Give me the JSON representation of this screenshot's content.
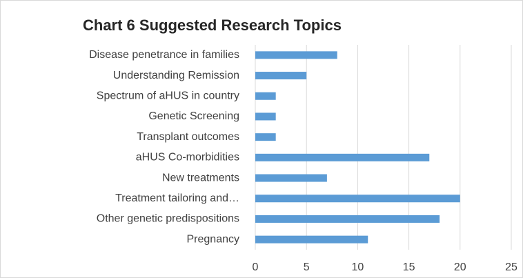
{
  "chart_data": {
    "type": "bar",
    "orientation": "horizontal",
    "title": "Chart 6 Suggested Research Topics",
    "categories": [
      "Disease penetrance in families",
      "Understanding Remission",
      "Spectrum of aHUS in country",
      "Genetic Screening",
      "Transplant outcomes",
      "aHUS Co-morbidities",
      "New treatments",
      "Treatment tailoring and…",
      "Other genetic predispositions",
      "Pregnancy"
    ],
    "values": [
      8,
      5,
      2,
      2,
      2,
      17,
      7,
      20,
      18,
      11
    ],
    "color": "#5b9bd5",
    "xlim": [
      0,
      25
    ],
    "xticks": [
      0,
      5,
      10,
      15,
      20,
      25
    ],
    "grid": true
  }
}
